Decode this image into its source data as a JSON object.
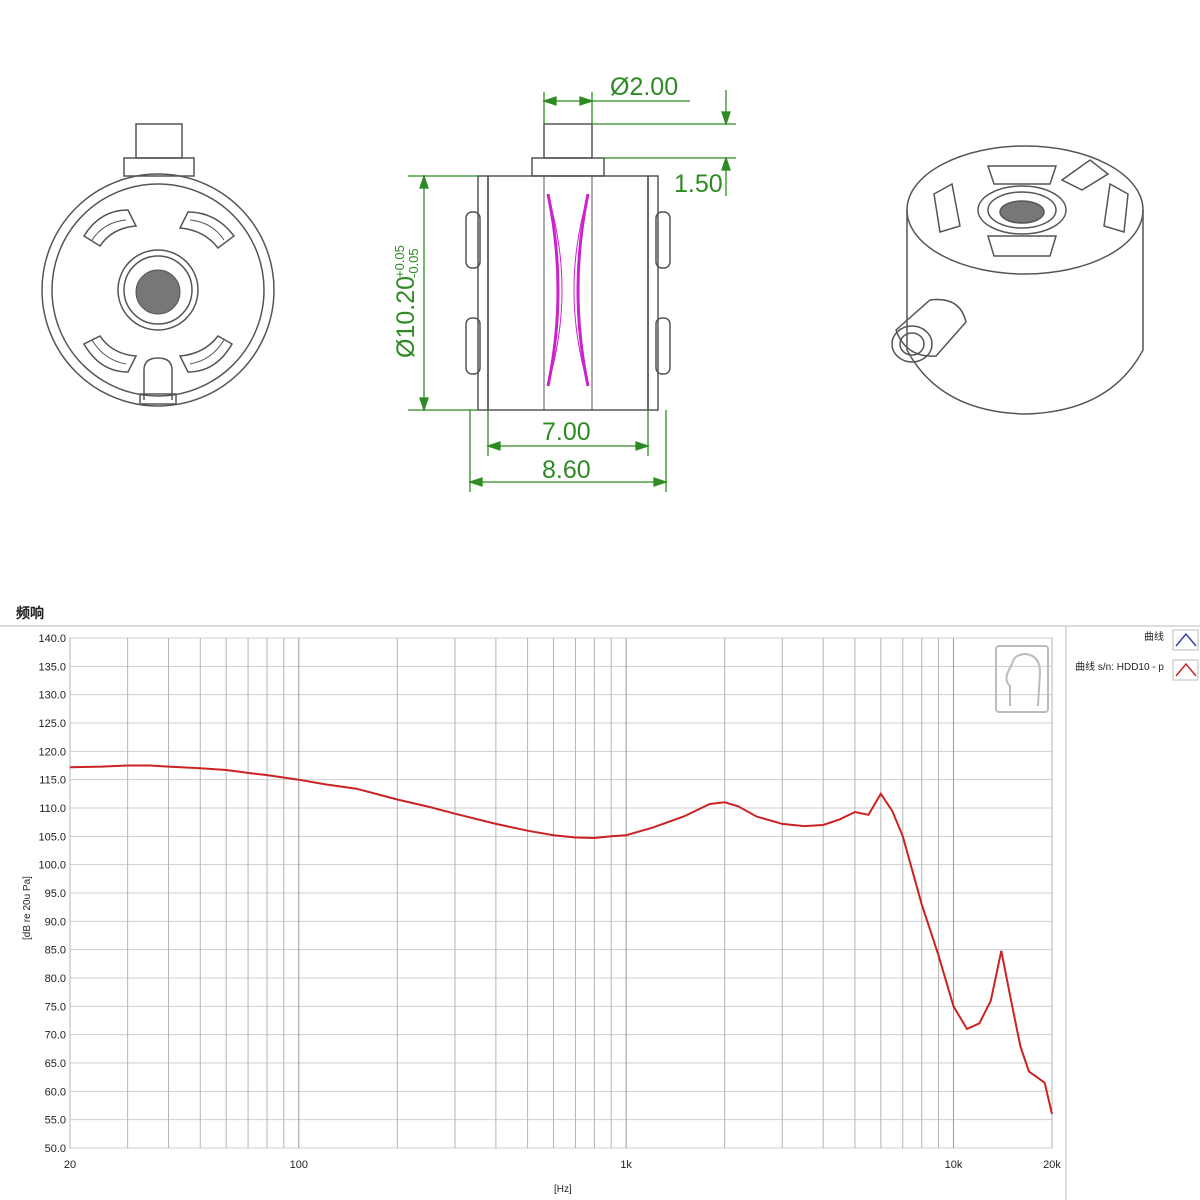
{
  "drawing": {
    "dimensions": {
      "pin_diameter": "Ø2.00",
      "pin_height": "1.50",
      "diameter_main": "Ø10.20",
      "diameter_tol_plus": "+0.05",
      "diameter_tol_minus": "-0.05",
      "inner_width": "7.00",
      "outer_width": "8.60"
    },
    "colors": {
      "dimension": "#2e8b23",
      "diaphragm": "#cc22cc",
      "outline": "#555555"
    }
  },
  "chart_data": {
    "type": "line",
    "title": "频响",
    "xlabel": "[Hz]",
    "ylabel": "[dB re 20u Pa]",
    "xscale": "log",
    "xlim": [
      20,
      20000
    ],
    "ylim": [
      50,
      140
    ],
    "x_ticks": [
      20,
      100,
      1000,
      10000,
      20000
    ],
    "x_tick_labels": [
      "20",
      "100",
      "1k",
      "10k",
      "20k"
    ],
    "y_ticks": [
      50.0,
      55.0,
      60.0,
      65.0,
      70.0,
      75.0,
      80.0,
      85.0,
      90.0,
      95.0,
      100.0,
      105.0,
      110.0,
      115.0,
      120.0,
      125.0,
      130.0,
      135.0,
      140.0
    ],
    "y_tick_labels": [
      "50.0",
      "55.0",
      "60.0",
      "65.0",
      "70.0",
      "75.0",
      "80.0",
      "85.0",
      "90.0",
      "95.0",
      "100.0",
      "105.0",
      "110.0",
      "115.0",
      "120.0",
      "125.0",
      "130.0",
      "135.0",
      "140.0"
    ],
    "grid": true,
    "legend_position": "right",
    "legend": [
      "曲线",
      "曲线 s/n: HDD10 - p"
    ],
    "series": [
      {
        "name": "曲线 s/n: HDD10 - p",
        "color": "#cc2222",
        "x": [
          20,
          25,
          30,
          35,
          40,
          50,
          60,
          70,
          80,
          100,
          120,
          150,
          200,
          250,
          300,
          400,
          500,
          600,
          700,
          800,
          900,
          1000,
          1200,
          1500,
          1800,
          2000,
          2200,
          2500,
          3000,
          3500,
          4000,
          4500,
          5000,
          5500,
          6000,
          6500,
          7000,
          8000,
          9000,
          10000,
          11000,
          12000,
          13000,
          14000,
          15000,
          16000,
          17000,
          18000,
          19000,
          20000
        ],
        "values": [
          117.2,
          117.3,
          117.5,
          117.5,
          117.3,
          117.0,
          116.7,
          116.2,
          115.8,
          115.0,
          114.2,
          113.4,
          111.5,
          110.2,
          109.0,
          107.2,
          106.0,
          105.2,
          104.8,
          104.7,
          105.0,
          105.2,
          106.5,
          108.5,
          110.7,
          111.0,
          110.3,
          108.5,
          107.2,
          106.8,
          107.0,
          108.0,
          109.3,
          108.8,
          112.5,
          109.5,
          105.0,
          93.0,
          84.0,
          75.0,
          71.0,
          72.0,
          76.0,
          84.8,
          76.0,
          68.0,
          63.5,
          62.5,
          61.5,
          56.0
        ]
      },
      {
        "name": "曲线",
        "color": "#3344aa",
        "x": [],
        "values": []
      }
    ]
  }
}
